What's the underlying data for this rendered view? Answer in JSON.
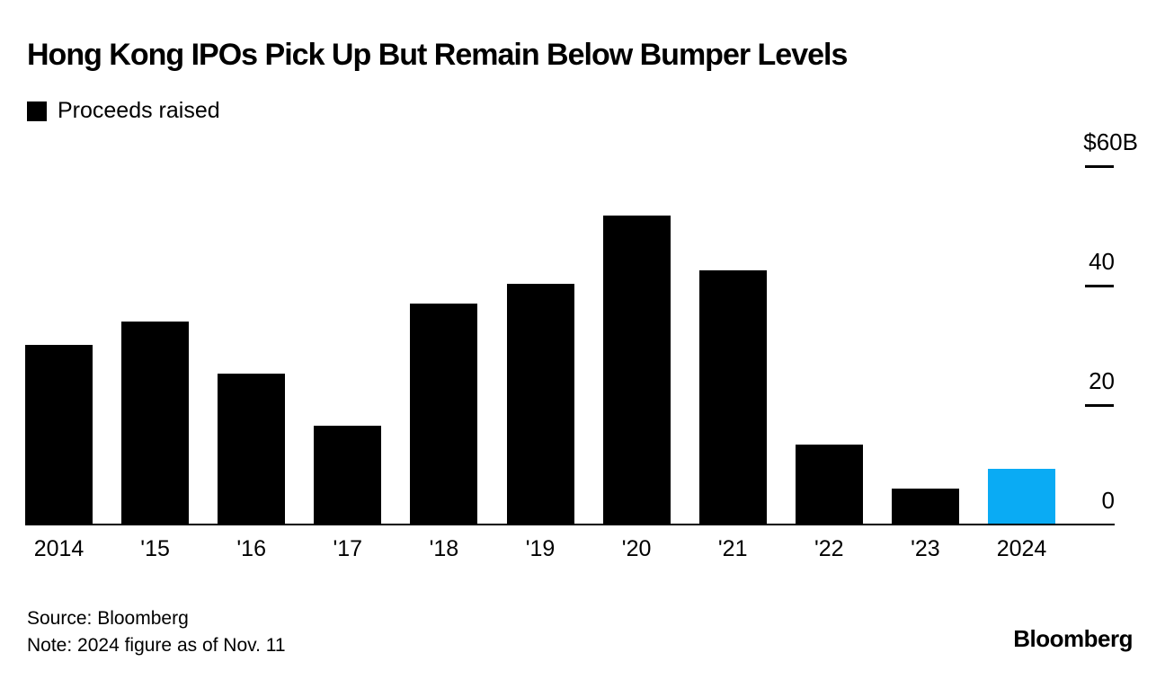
{
  "title": "Hong Kong IPOs Pick Up But Remain Below Bumper Levels",
  "legend": {
    "label": "Proceeds raised",
    "swatch_color": "#000000"
  },
  "chart_data": {
    "type": "bar",
    "title": "Hong Kong IPOs Pick Up But Remain Below Bumper Levels",
    "series_name": "Proceeds raised",
    "unit": "USD billions",
    "categories": [
      "2014",
      "'15",
      "'16",
      "'17",
      "'18",
      "'19",
      "'20",
      "'21",
      "'22",
      "'23",
      "2024"
    ],
    "values": [
      29.9,
      33.8,
      25.1,
      16.4,
      36.8,
      40.1,
      51.6,
      42.4,
      13.2,
      5.9,
      9.1
    ],
    "highlight_index": 10,
    "bar_color": "#000000",
    "highlight_color": "#0aabf4",
    "ylim": [
      0,
      60
    ],
    "yticks": [
      0,
      20,
      40,
      60
    ],
    "ytick_labels": [
      "0",
      "20",
      "40",
      "$60B"
    ],
    "axis_side": "right",
    "grid": false,
    "legend_position": "top-left"
  },
  "footer": {
    "source": "Source: Bloomberg",
    "note": "Note: 2024 figure as of Nov. 11",
    "brand": "Bloomberg"
  }
}
